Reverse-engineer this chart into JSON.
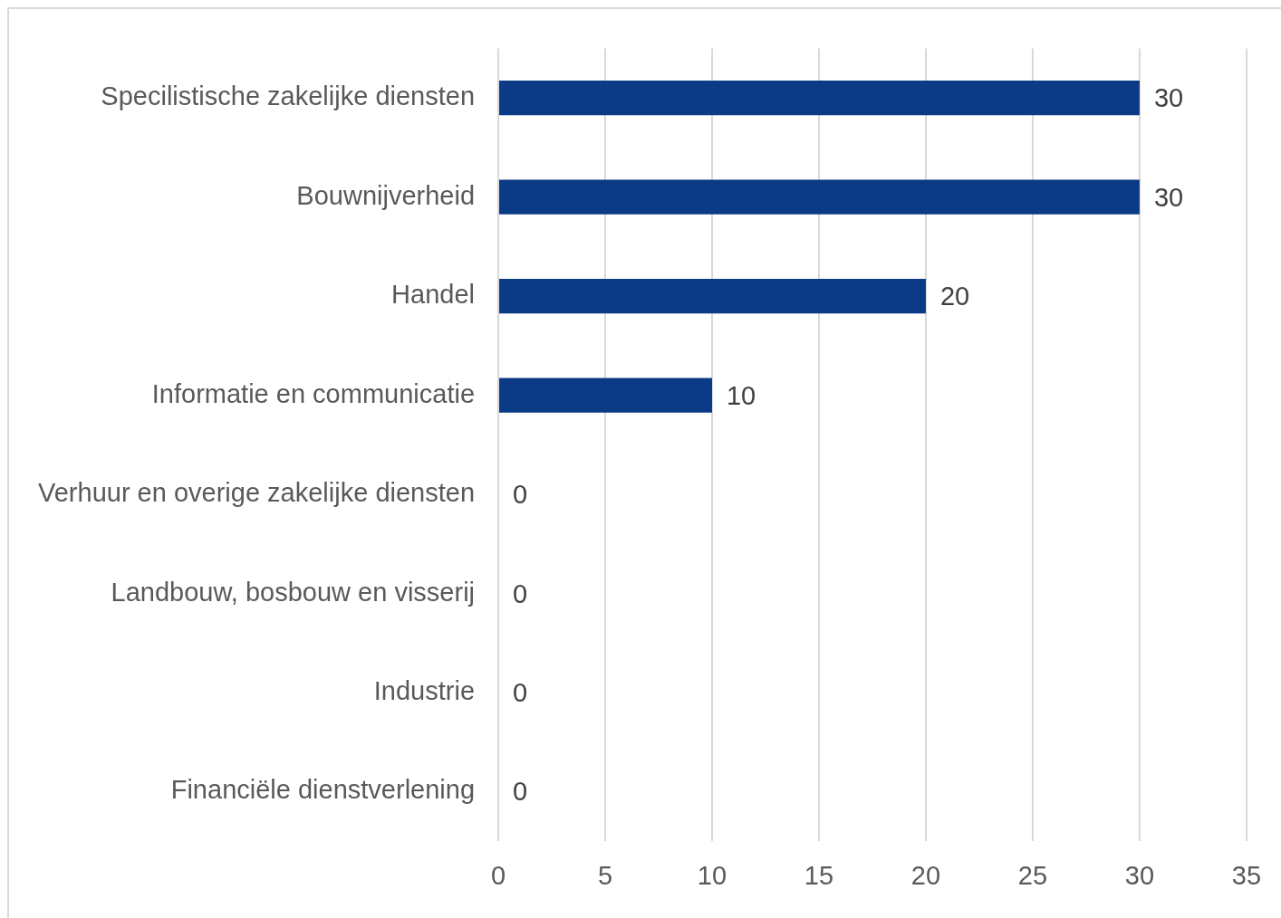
{
  "chart_data": {
    "type": "bar",
    "orientation": "horizontal",
    "categories": [
      "Specilistische zakelijke diensten",
      "Bouwnijverheid",
      "Handel",
      "Informatie en communicatie",
      "Verhuur en overige zakelijke diensten",
      "Landbouw, bosbouw en visserij",
      "Industrie",
      "Financiële dienstverlening"
    ],
    "values": [
      30,
      30,
      20,
      10,
      0,
      0,
      0,
      0
    ],
    "color": "#0b3a86",
    "xlim": [
      0,
      35
    ],
    "xticks": [
      0,
      5,
      10,
      15,
      20,
      25,
      30,
      35
    ],
    "grid": "x",
    "legend": false,
    "data_labels": true
  }
}
